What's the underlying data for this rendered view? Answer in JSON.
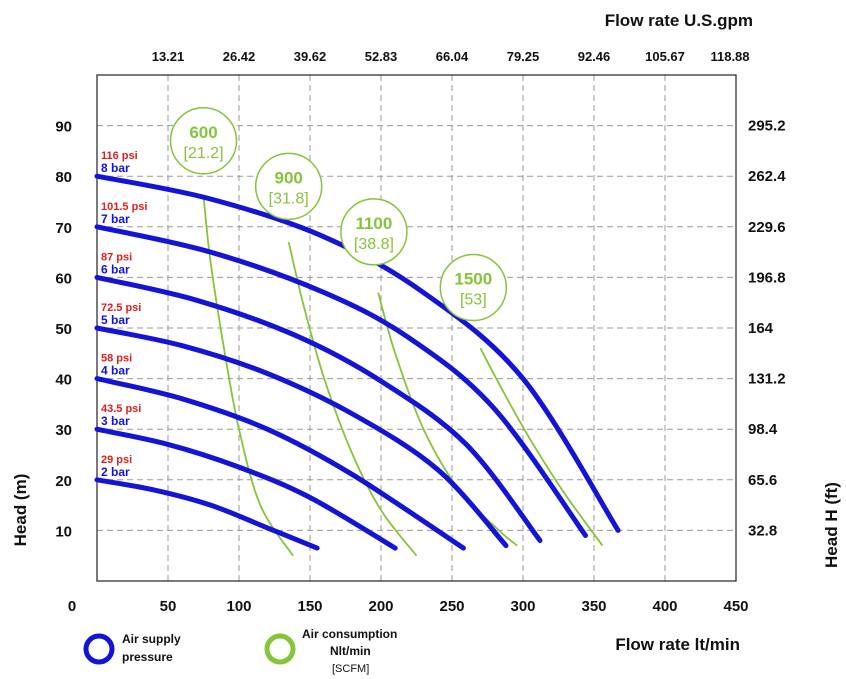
{
  "chart_data": {
    "type": "line",
    "x_bottom": {
      "label": "Flow rate  lt/min",
      "ticks": [
        0,
        50,
        100,
        150,
        200,
        250,
        300,
        350,
        400,
        450
      ],
      "range": [
        0,
        450
      ]
    },
    "x_top": {
      "label": "Flow rate U.S.gpm",
      "ticks": [
        "13.21",
        "26.42",
        "39.62",
        "52.83",
        "66.04",
        "79.25",
        "92.46",
        "105.67",
        "118.88"
      ],
      "positions": [
        50,
        100,
        150,
        200,
        250,
        300,
        350,
        400,
        450
      ]
    },
    "y_left": {
      "label": "Head (m)",
      "ticks": [
        10,
        20,
        30,
        40,
        50,
        60,
        70,
        80,
        90
      ],
      "range": [
        0,
        100
      ]
    },
    "y_right": {
      "label": "Head H (ft)",
      "ticks": [
        "32.8",
        "65.6",
        "98.4",
        "131.2",
        "164",
        "196.8",
        "229.6",
        "262.4",
        "295.2"
      ],
      "positions": [
        10,
        20,
        30,
        40,
        50,
        60,
        70,
        80,
        90
      ]
    },
    "grid": true,
    "pressure_series": [
      {
        "psi": "29 psi",
        "bar": "2 bar",
        "points": [
          [
            0,
            20
          ],
          [
            40,
            18
          ],
          [
            80,
            15
          ],
          [
            120,
            10.5
          ],
          [
            155,
            6.5
          ]
        ]
      },
      {
        "psi": "43.5 psi",
        "bar": "3 bar",
        "points": [
          [
            0,
            30
          ],
          [
            50,
            27
          ],
          [
            100,
            22.5
          ],
          [
            150,
            16.5
          ],
          [
            210,
            6.5
          ]
        ]
      },
      {
        "psi": "58 psi",
        "bar": "4 bar",
        "points": [
          [
            0,
            40
          ],
          [
            60,
            36
          ],
          [
            120,
            30
          ],
          [
            180,
            21
          ],
          [
            258,
            6.5
          ]
        ]
      },
      {
        "psi": "72.5 psi",
        "bar": "5 bar",
        "points": [
          [
            0,
            50
          ],
          [
            60,
            46.5
          ],
          [
            120,
            41
          ],
          [
            180,
            33
          ],
          [
            240,
            22
          ],
          [
            288,
            7
          ]
        ]
      },
      {
        "psi": "87 psi",
        "bar": "6 bar",
        "points": [
          [
            0,
            60
          ],
          [
            70,
            55.5
          ],
          [
            140,
            48.5
          ],
          [
            200,
            39.5
          ],
          [
            260,
            27
          ],
          [
            312,
            8
          ]
        ]
      },
      {
        "psi": "101.5 psi",
        "bar": "7 bar",
        "points": [
          [
            0,
            70
          ],
          [
            80,
            65
          ],
          [
            160,
            57
          ],
          [
            220,
            48
          ],
          [
            280,
            34
          ],
          [
            344,
            9
          ]
        ]
      },
      {
        "psi": "116 psi",
        "bar": "8 bar",
        "points": [
          [
            0,
            80
          ],
          [
            80,
            75.5
          ],
          [
            160,
            68
          ],
          [
            230,
            57
          ],
          [
            300,
            40
          ],
          [
            367,
            10
          ]
        ]
      }
    ],
    "air_consumption_series": [
      {
        "top": "600",
        "bottom": "[21.2]",
        "bubble": [
          75,
          87
        ],
        "points": [
          [
            75,
            76
          ],
          [
            80,
            63
          ],
          [
            90,
            45
          ],
          [
            100,
            30
          ],
          [
            115,
            15
          ],
          [
            138,
            5
          ]
        ]
      },
      {
        "top": "900",
        "bottom": "[31.8]",
        "bubble": [
          135,
          78
        ],
        "points": [
          [
            135,
            67
          ],
          [
            145,
            55
          ],
          [
            160,
            40
          ],
          [
            180,
            25
          ],
          [
            200,
            14
          ],
          [
            225,
            5
          ]
        ]
      },
      {
        "top": "1100",
        "bottom": "[38.8]",
        "bubble": [
          195,
          69
        ],
        "points": [
          [
            198,
            57
          ],
          [
            210,
            45
          ],
          [
            230,
            30
          ],
          [
            255,
            18
          ],
          [
            283,
            10
          ],
          [
            296,
            7
          ]
        ]
      },
      {
        "top": "1500",
        "bottom": "[53]",
        "bubble": [
          265,
          58
        ],
        "points": [
          [
            270,
            46
          ],
          [
            285,
            38
          ],
          [
            305,
            28
          ],
          [
            330,
            17
          ],
          [
            356,
            7
          ]
        ]
      }
    ],
    "colors": {
      "pressure": "#1414d8",
      "air": "#86c43a",
      "psi_label": "#e0201e",
      "grid": "#9a9a9a"
    },
    "legend": {
      "pressure_line1": "Air supply",
      "pressure_line2": "pressure",
      "air_line1": "Air consumption",
      "air_line2": "Nlt/min",
      "air_line3": "[SCFM]"
    }
  }
}
